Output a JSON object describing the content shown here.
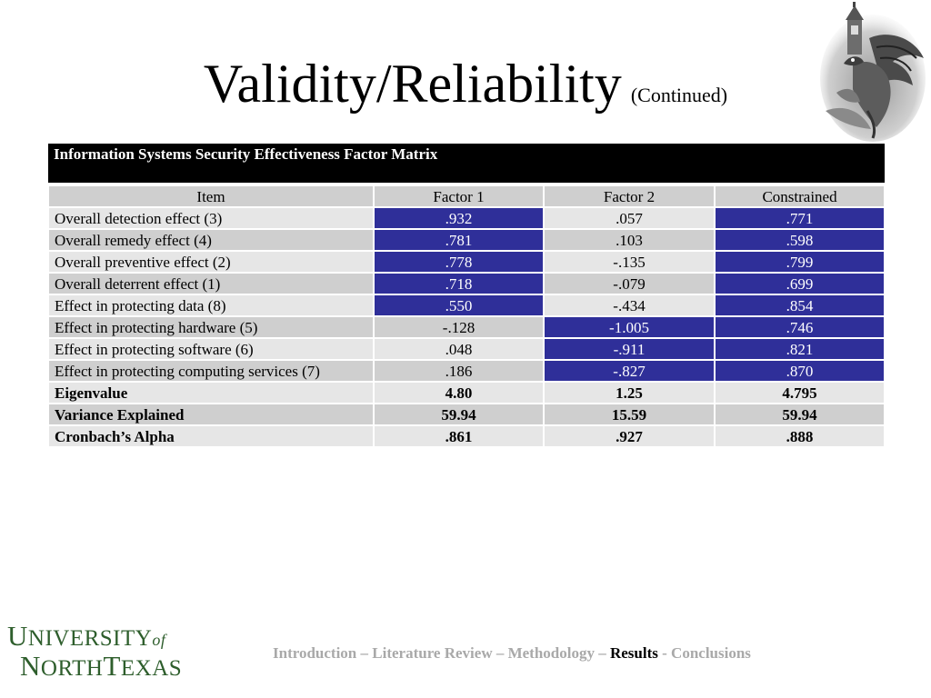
{
  "title": {
    "main": "Validity/Reliability",
    "sub": "(Continued)"
  },
  "table": {
    "caption": "Information Systems Security Effectiveness Factor Matrix",
    "headers": [
      "Item",
      "Factor 1",
      "Factor 2",
      "Constrained"
    ],
    "rows": [
      {
        "item": "Overall detection effect (3)",
        "f1": ".932",
        "f2": ".057",
        "c": ".771"
      },
      {
        "item": "Overall remedy effect (4)",
        "f1": ".781",
        "f2": ".103",
        "c": ".598"
      },
      {
        "item": "Overall preventive effect (2)",
        "f1": ".778",
        "f2": "-.135",
        "c": ".799"
      },
      {
        "item": "Overall deterrent effect (1)",
        "f1": ".718",
        "f2": "-.079",
        "c": ".699"
      },
      {
        "item": "Effect in protecting data (8)",
        "f1": ".550",
        "f2": "-.434",
        "c": ".854"
      },
      {
        "item": "Effect in protecting hardware (5)",
        "f1": "-.128",
        "f2": "-1.005",
        "c": ".746"
      },
      {
        "item": "Effect in protecting software (6)",
        "f1": ".048",
        "f2": "-.911",
        "c": ".821"
      },
      {
        "item": "Effect in protecting computing services (7)",
        "f1": ".186",
        "f2": "-.827",
        "c": ".870"
      }
    ],
    "summary": [
      {
        "item": "Eigenvalue",
        "f1": "4.80",
        "f2": "1.25",
        "c": "4.795"
      },
      {
        "item": "Variance Explained",
        "f1": "59.94",
        "f2": "15.59",
        "c": "59.94"
      },
      {
        "item": "Cronbach’s Alpha",
        "f1": ".861",
        "f2": ".927",
        "c": ".888"
      }
    ]
  },
  "colors": {
    "highlight": "#2f2f99",
    "row_light": "#e6e6e6",
    "row_dark": "#cfcfcf",
    "logo_green": "#2e5e2c",
    "nav_gray": "#a9a9a9"
  },
  "logo": {
    "line1_first": "U",
    "line1_rest": "NIVERSITY",
    "line1_of": "of",
    "line2_n": "N",
    "line2_orth": "ORTH",
    "line2_t": "T",
    "line2_exas": "EXAS"
  },
  "footer": {
    "nav_before": "Introduction – Literature Review – Methodology – ",
    "nav_current": "Results",
    "nav_after": " - Conclusions"
  },
  "icons": {
    "emblem": "eagle-tower-emblem-icon"
  }
}
